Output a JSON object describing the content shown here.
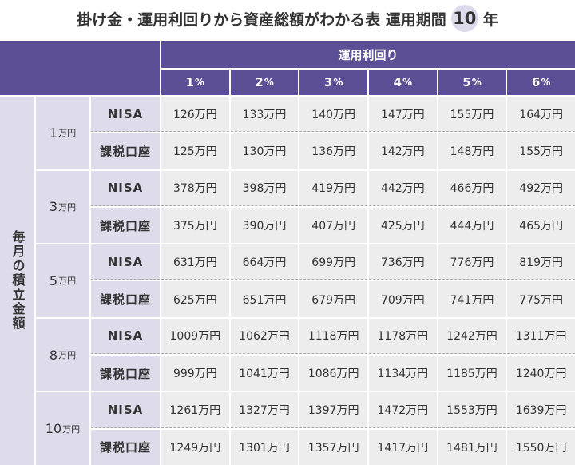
{
  "title": {
    "prefix": "掛け金・運用利回りから資産総額がわかる表 運用期間",
    "years": "10",
    "suffix": "年"
  },
  "header": {
    "group_label": "運用利回り",
    "rates": [
      {
        "num": "1",
        "unit": "%"
      },
      {
        "num": "2",
        "unit": "%"
      },
      {
        "num": "3",
        "unit": "%"
      },
      {
        "num": "4",
        "unit": "%"
      },
      {
        "num": "5",
        "unit": "%"
      },
      {
        "num": "6",
        "unit": "%"
      }
    ]
  },
  "row_header": "毎月の積立金額",
  "account_types": [
    "NISA",
    "課税口座"
  ],
  "groups": [
    {
      "num": "1",
      "unit": "万円",
      "nisa": [
        "126万円",
        "133万円",
        "140万円",
        "147万円",
        "155万円",
        "164万円"
      ],
      "taxable": [
        "125万円",
        "130万円",
        "136万円",
        "142万円",
        "148万円",
        "155万円"
      ]
    },
    {
      "num": "3",
      "unit": "万円",
      "nisa": [
        "378万円",
        "398万円",
        "419万円",
        "442万円",
        "466万円",
        "492万円"
      ],
      "taxable": [
        "375万円",
        "390万円",
        "407万円",
        "425万円",
        "444万円",
        "465万円"
      ]
    },
    {
      "num": "5",
      "unit": "万円",
      "nisa": [
        "631万円",
        "664万円",
        "699万円",
        "736万円",
        "776万円",
        "819万円"
      ],
      "taxable": [
        "625万円",
        "651万円",
        "679万円",
        "709万円",
        "741万円",
        "775万円"
      ]
    },
    {
      "num": "8",
      "unit": "万円",
      "nisa": [
        "1009万円",
        "1062万円",
        "1118万円",
        "1178万円",
        "1242万円",
        "1311万円"
      ],
      "taxable": [
        "999万円",
        "1041万円",
        "1086万円",
        "1134万円",
        "1185万円",
        "1240万円"
      ]
    },
    {
      "num": "10",
      "unit": "万円",
      "nisa": [
        "1261万円",
        "1327万円",
        "1397万円",
        "1472万円",
        "1553万円",
        "1639万円"
      ],
      "taxable": [
        "1249万円",
        "1301万円",
        "1357万円",
        "1417万円",
        "1481万円",
        "1550万円"
      ]
    }
  ],
  "colors": {
    "header_bg": "#5c4f96",
    "label_bg": "#dedbea",
    "cell_bg": "#ededed",
    "badge_bg": "#dcdaea",
    "text": "#333333"
  }
}
